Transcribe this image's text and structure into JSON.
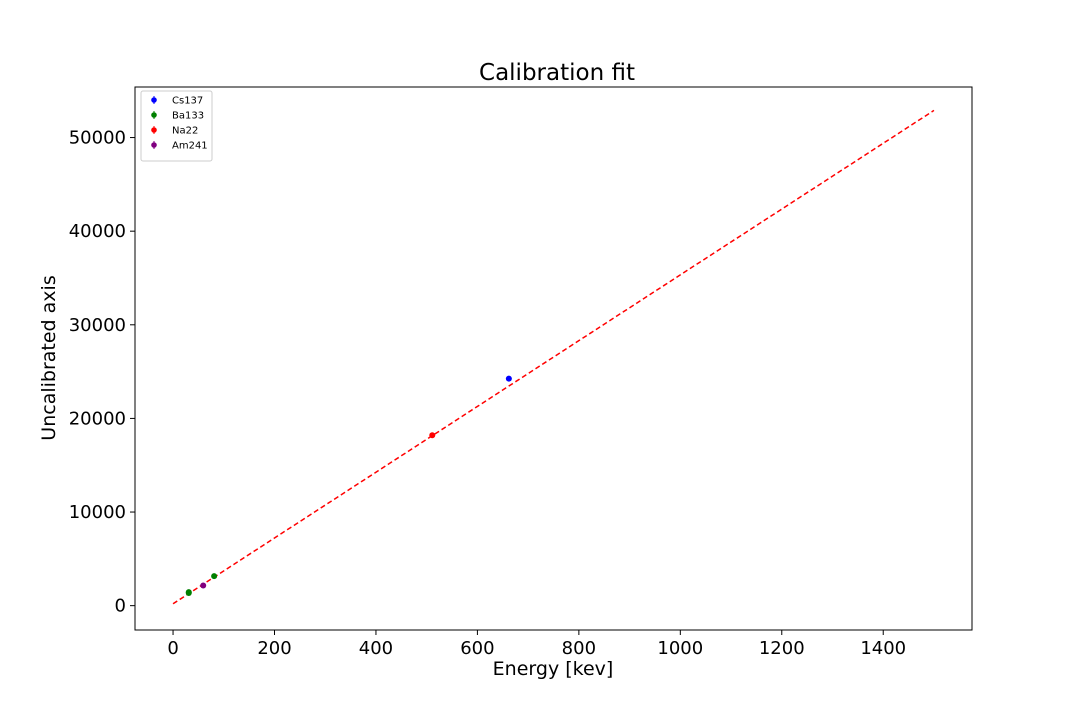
{
  "chart_data": {
    "type": "scatter",
    "title": "Calibration fit",
    "xlabel": "Energy [kev]",
    "ylabel": "Uncalibrated axis",
    "xlim": [
      -75,
      1575
    ],
    "ylim": [
      -2600,
      55400
    ],
    "xticks": [
      0,
      200,
      400,
      600,
      800,
      1000,
      1200,
      1400
    ],
    "yticks": [
      0,
      10000,
      20000,
      30000,
      40000,
      50000
    ],
    "grid": false,
    "legend_position": "top-left",
    "series": [
      {
        "name": "Cs137",
        "color": "#0000ff",
        "points": [
          {
            "x": 662,
            "y": 24250
          }
        ]
      },
      {
        "name": "Ba133",
        "color": "#008000",
        "points": [
          {
            "x": 31,
            "y": 1350
          },
          {
            "x": 31,
            "y": 1450
          },
          {
            "x": 81,
            "y": 3150
          }
        ]
      },
      {
        "name": "Na22",
        "color": "#ff0000",
        "points": [
          {
            "x": 511,
            "y": 18200
          }
        ]
      },
      {
        "name": "Am241",
        "color": "#800080",
        "points": [
          {
            "x": 59.5,
            "y": 2150
          }
        ]
      }
    ],
    "fit_line": {
      "color": "#ff0000",
      "style": "dashed",
      "x": [
        0,
        1500
      ],
      "y": [
        200,
        52900
      ]
    }
  }
}
